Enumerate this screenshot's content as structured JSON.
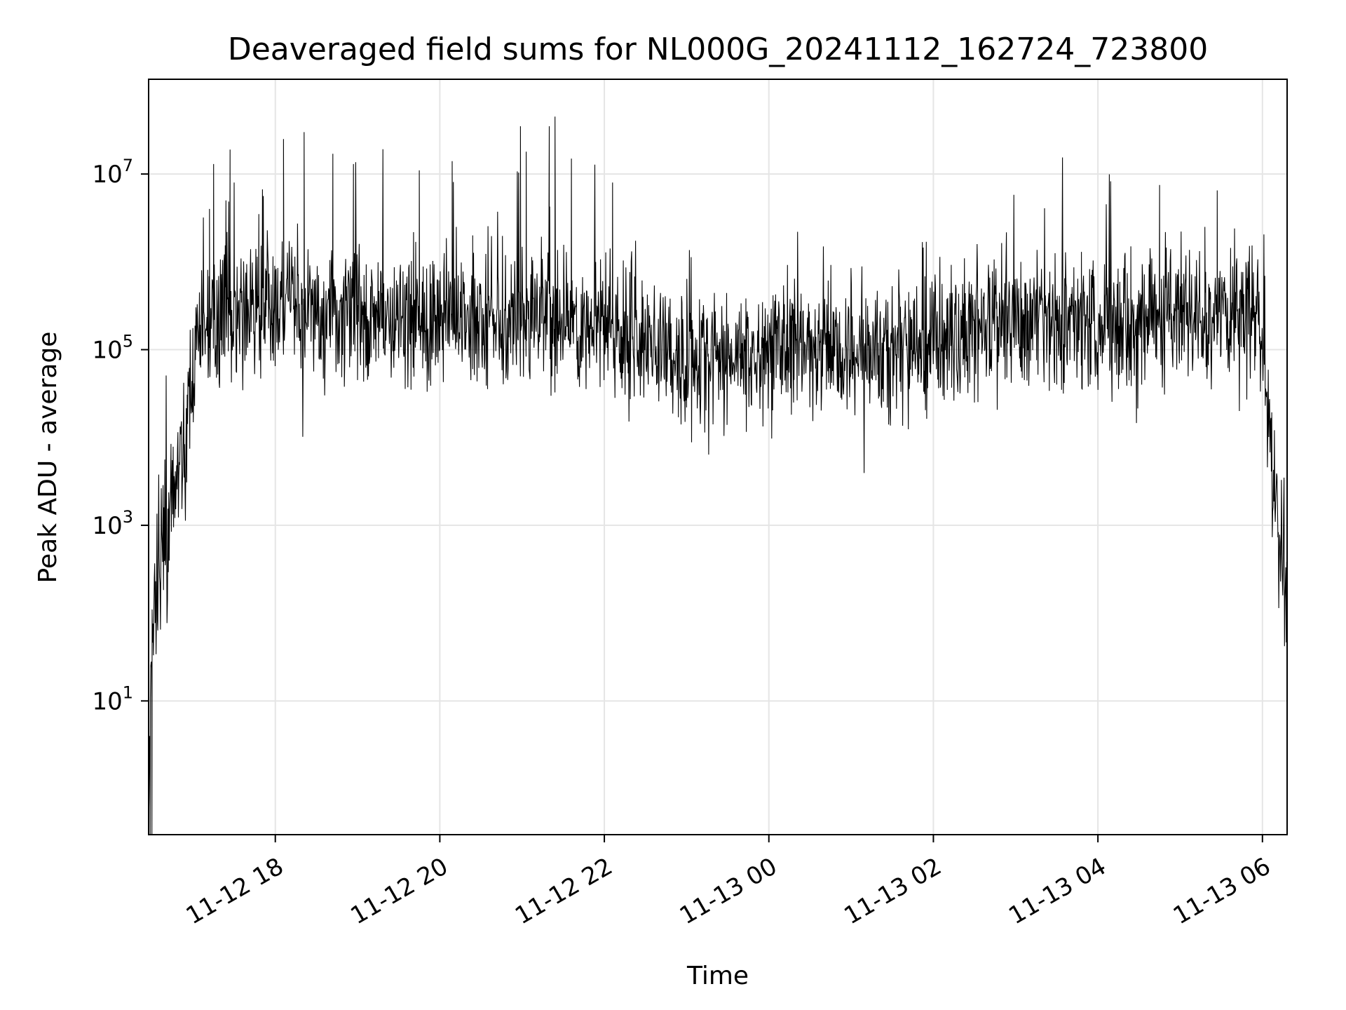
{
  "chart_data": {
    "type": "line",
    "title": "Deaveraged field sums for NL000G_20241112_162724_723800",
    "xlabel": "Time",
    "ylabel": "Peak ADU - average",
    "x_tick_labels": [
      "11-12 18",
      "11-12 20",
      "11-12 22",
      "11-13 00",
      "11-13 02",
      "11-13 04",
      "11-13 06"
    ],
    "x_tick_hours": [
      18,
      20,
      22,
      24,
      26,
      28,
      30
    ],
    "x_range_hours": [
      16.46,
      30.3
    ],
    "y_scale": "log",
    "y_ticks": [
      {
        "value": 10,
        "base": "10",
        "exp": "1"
      },
      {
        "value": 1000,
        "base": "10",
        "exp": "3"
      },
      {
        "value": 100000,
        "base": "10",
        "exp": "5"
      },
      {
        "value": 10000000,
        "base": "10",
        "exp": "7"
      }
    ],
    "y_range": [
      0.3,
      120000000
    ],
    "grid": true,
    "line_color": "#000000",
    "envelope": [
      {
        "t": 16.46,
        "v": 0.3
      },
      {
        "t": 16.5,
        "v": 80
      },
      {
        "t": 16.55,
        "v": 150
      },
      {
        "t": 16.65,
        "v": 500
      },
      {
        "t": 16.75,
        "v": 1500
      },
      {
        "t": 16.85,
        "v": 5000
      },
      {
        "t": 16.95,
        "v": 20000
      },
      {
        "t": 17.0,
        "v": 60000
      },
      {
        "t": 17.1,
        "v": 150000
      },
      {
        "t": 17.3,
        "v": 250000
      },
      {
        "t": 17.6,
        "v": 260000
      },
      {
        "t": 18.0,
        "v": 350000
      },
      {
        "t": 18.3,
        "v": 300000
      },
      {
        "t": 19.0,
        "v": 250000
      },
      {
        "t": 20.0,
        "v": 250000
      },
      {
        "t": 21.0,
        "v": 220000
      },
      {
        "t": 22.0,
        "v": 180000
      },
      {
        "t": 22.5,
        "v": 120000
      },
      {
        "t": 22.9,
        "v": 75000
      },
      {
        "t": 23.5,
        "v": 85000
      },
      {
        "t": 24.0,
        "v": 100000
      },
      {
        "t": 25.0,
        "v": 100000
      },
      {
        "t": 26.0,
        "v": 110000
      },
      {
        "t": 26.3,
        "v": 140000
      },
      {
        "t": 26.8,
        "v": 200000
      },
      {
        "t": 27.5,
        "v": 210000
      },
      {
        "t": 28.0,
        "v": 230000
      },
      {
        "t": 29.0,
        "v": 230000
      },
      {
        "t": 29.6,
        "v": 280000
      },
      {
        "t": 29.95,
        "v": 300000
      },
      {
        "t": 30.05,
        "v": 50000
      },
      {
        "t": 30.1,
        "v": 5000
      },
      {
        "t": 30.2,
        "v": 800
      },
      {
        "t": 30.3,
        "v": 150
      }
    ],
    "spikes": [
      {
        "t": 17.25,
        "v": 13000000
      },
      {
        "t": 17.2,
        "v": 4000000
      },
      {
        "t": 17.45,
        "v": 19000000
      },
      {
        "t": 17.4,
        "v": 5000000
      },
      {
        "t": 17.5,
        "v": 8000000
      },
      {
        "t": 17.8,
        "v": 3500000
      },
      {
        "t": 18.1,
        "v": 25000000
      },
      {
        "t": 18.35,
        "v": 30000000
      },
      {
        "t": 18.7,
        "v": 17000000
      },
      {
        "t": 18.95,
        "v": 13000000
      },
      {
        "t": 18.95,
        "v": 3500000
      },
      {
        "t": 19.75,
        "v": 11000000
      },
      {
        "t": 20.15,
        "v": 14000000
      },
      {
        "t": 20.2,
        "v": 2500000
      },
      {
        "t": 20.4,
        "v": 2000000
      },
      {
        "t": 20.98,
        "v": 35000000
      },
      {
        "t": 21.05,
        "v": 18000000
      },
      {
        "t": 21.33,
        "v": 35000000
      },
      {
        "t": 21.4,
        "v": 45000000
      },
      {
        "t": 21.6,
        "v": 15000000
      },
      {
        "t": 22.1,
        "v": 8000000
      },
      {
        "t": 28.75,
        "v": 7500000
      },
      {
        "t": 29.3,
        "v": 2500000
      },
      {
        "t": 29.45,
        "v": 6500000
      },
      {
        "t": 28.4,
        "v": 1500000
      },
      {
        "t": 27.8,
        "v": 1300000
      }
    ],
    "dips": [
      {
        "t": 16.48,
        "v": 0.3
      },
      {
        "t": 16.5,
        "v": 0.3
      },
      {
        "t": 19.0,
        "v": 45000
      },
      {
        "t": 19.65,
        "v": 35000
      },
      {
        "t": 20.4,
        "v": 60000
      },
      {
        "t": 22.9,
        "v": 17000
      },
      {
        "t": 23.0,
        "v": 22000
      },
      {
        "t": 24.3,
        "v": 25000
      },
      {
        "t": 27.5,
        "v": 40000
      }
    ]
  }
}
